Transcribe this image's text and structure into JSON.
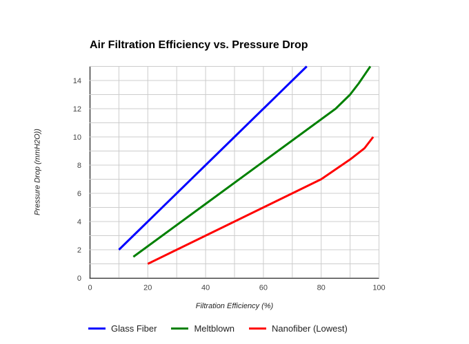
{
  "chart_data": {
    "type": "line",
    "title": "Air Filtration Efficiency vs. Pressure Drop",
    "xlabel": "Filtration Efficiency (%)",
    "ylabel": "Pressure Drop (mmH2O))",
    "xlim": [
      0,
      100
    ],
    "ylim": [
      0,
      15
    ],
    "x_tick_labels": [
      0,
      20,
      40,
      60,
      80,
      100
    ],
    "y_tick_labels": [
      0,
      2,
      4,
      6,
      8,
      10,
      12,
      14
    ],
    "x_grid_step": 10,
    "y_grid_step": 1,
    "grid": true,
    "legend_position": "bottom",
    "series": [
      {
        "name": "Glass Fiber",
        "color": "#0000ff",
        "points": [
          [
            10,
            2
          ],
          [
            20,
            4
          ],
          [
            30,
            6
          ],
          [
            40,
            8
          ],
          [
            50,
            10
          ],
          [
            60,
            12
          ],
          [
            70,
            14
          ],
          [
            75,
            15
          ]
        ]
      },
      {
        "name": "Meltblown",
        "color": "#008000",
        "points": [
          [
            15,
            1.5
          ],
          [
            25,
            3
          ],
          [
            35,
            4.5
          ],
          [
            45,
            6
          ],
          [
            55,
            7.5
          ],
          [
            65,
            9
          ],
          [
            75,
            10.5
          ],
          [
            85,
            12
          ],
          [
            90,
            13
          ],
          [
            93,
            13.8
          ],
          [
            95,
            14.4
          ],
          [
            97,
            15
          ]
        ]
      },
      {
        "name": "Nanofiber (Lowest)",
        "color": "#ff0000",
        "points": [
          [
            20,
            1
          ],
          [
            30,
            2
          ],
          [
            40,
            3
          ],
          [
            50,
            4
          ],
          [
            60,
            5
          ],
          [
            70,
            6
          ],
          [
            80,
            7
          ],
          [
            85,
            7.7
          ],
          [
            90,
            8.4
          ],
          [
            95,
            9.2
          ],
          [
            98,
            10
          ]
        ]
      }
    ],
    "colors": {
      "axis": "#333333",
      "grid": "#cccccc",
      "tick_label": "#444444",
      "axis_title": "#222222",
      "title": "#000000",
      "legend_text": "#222222",
      "background": "#ffffff"
    }
  }
}
